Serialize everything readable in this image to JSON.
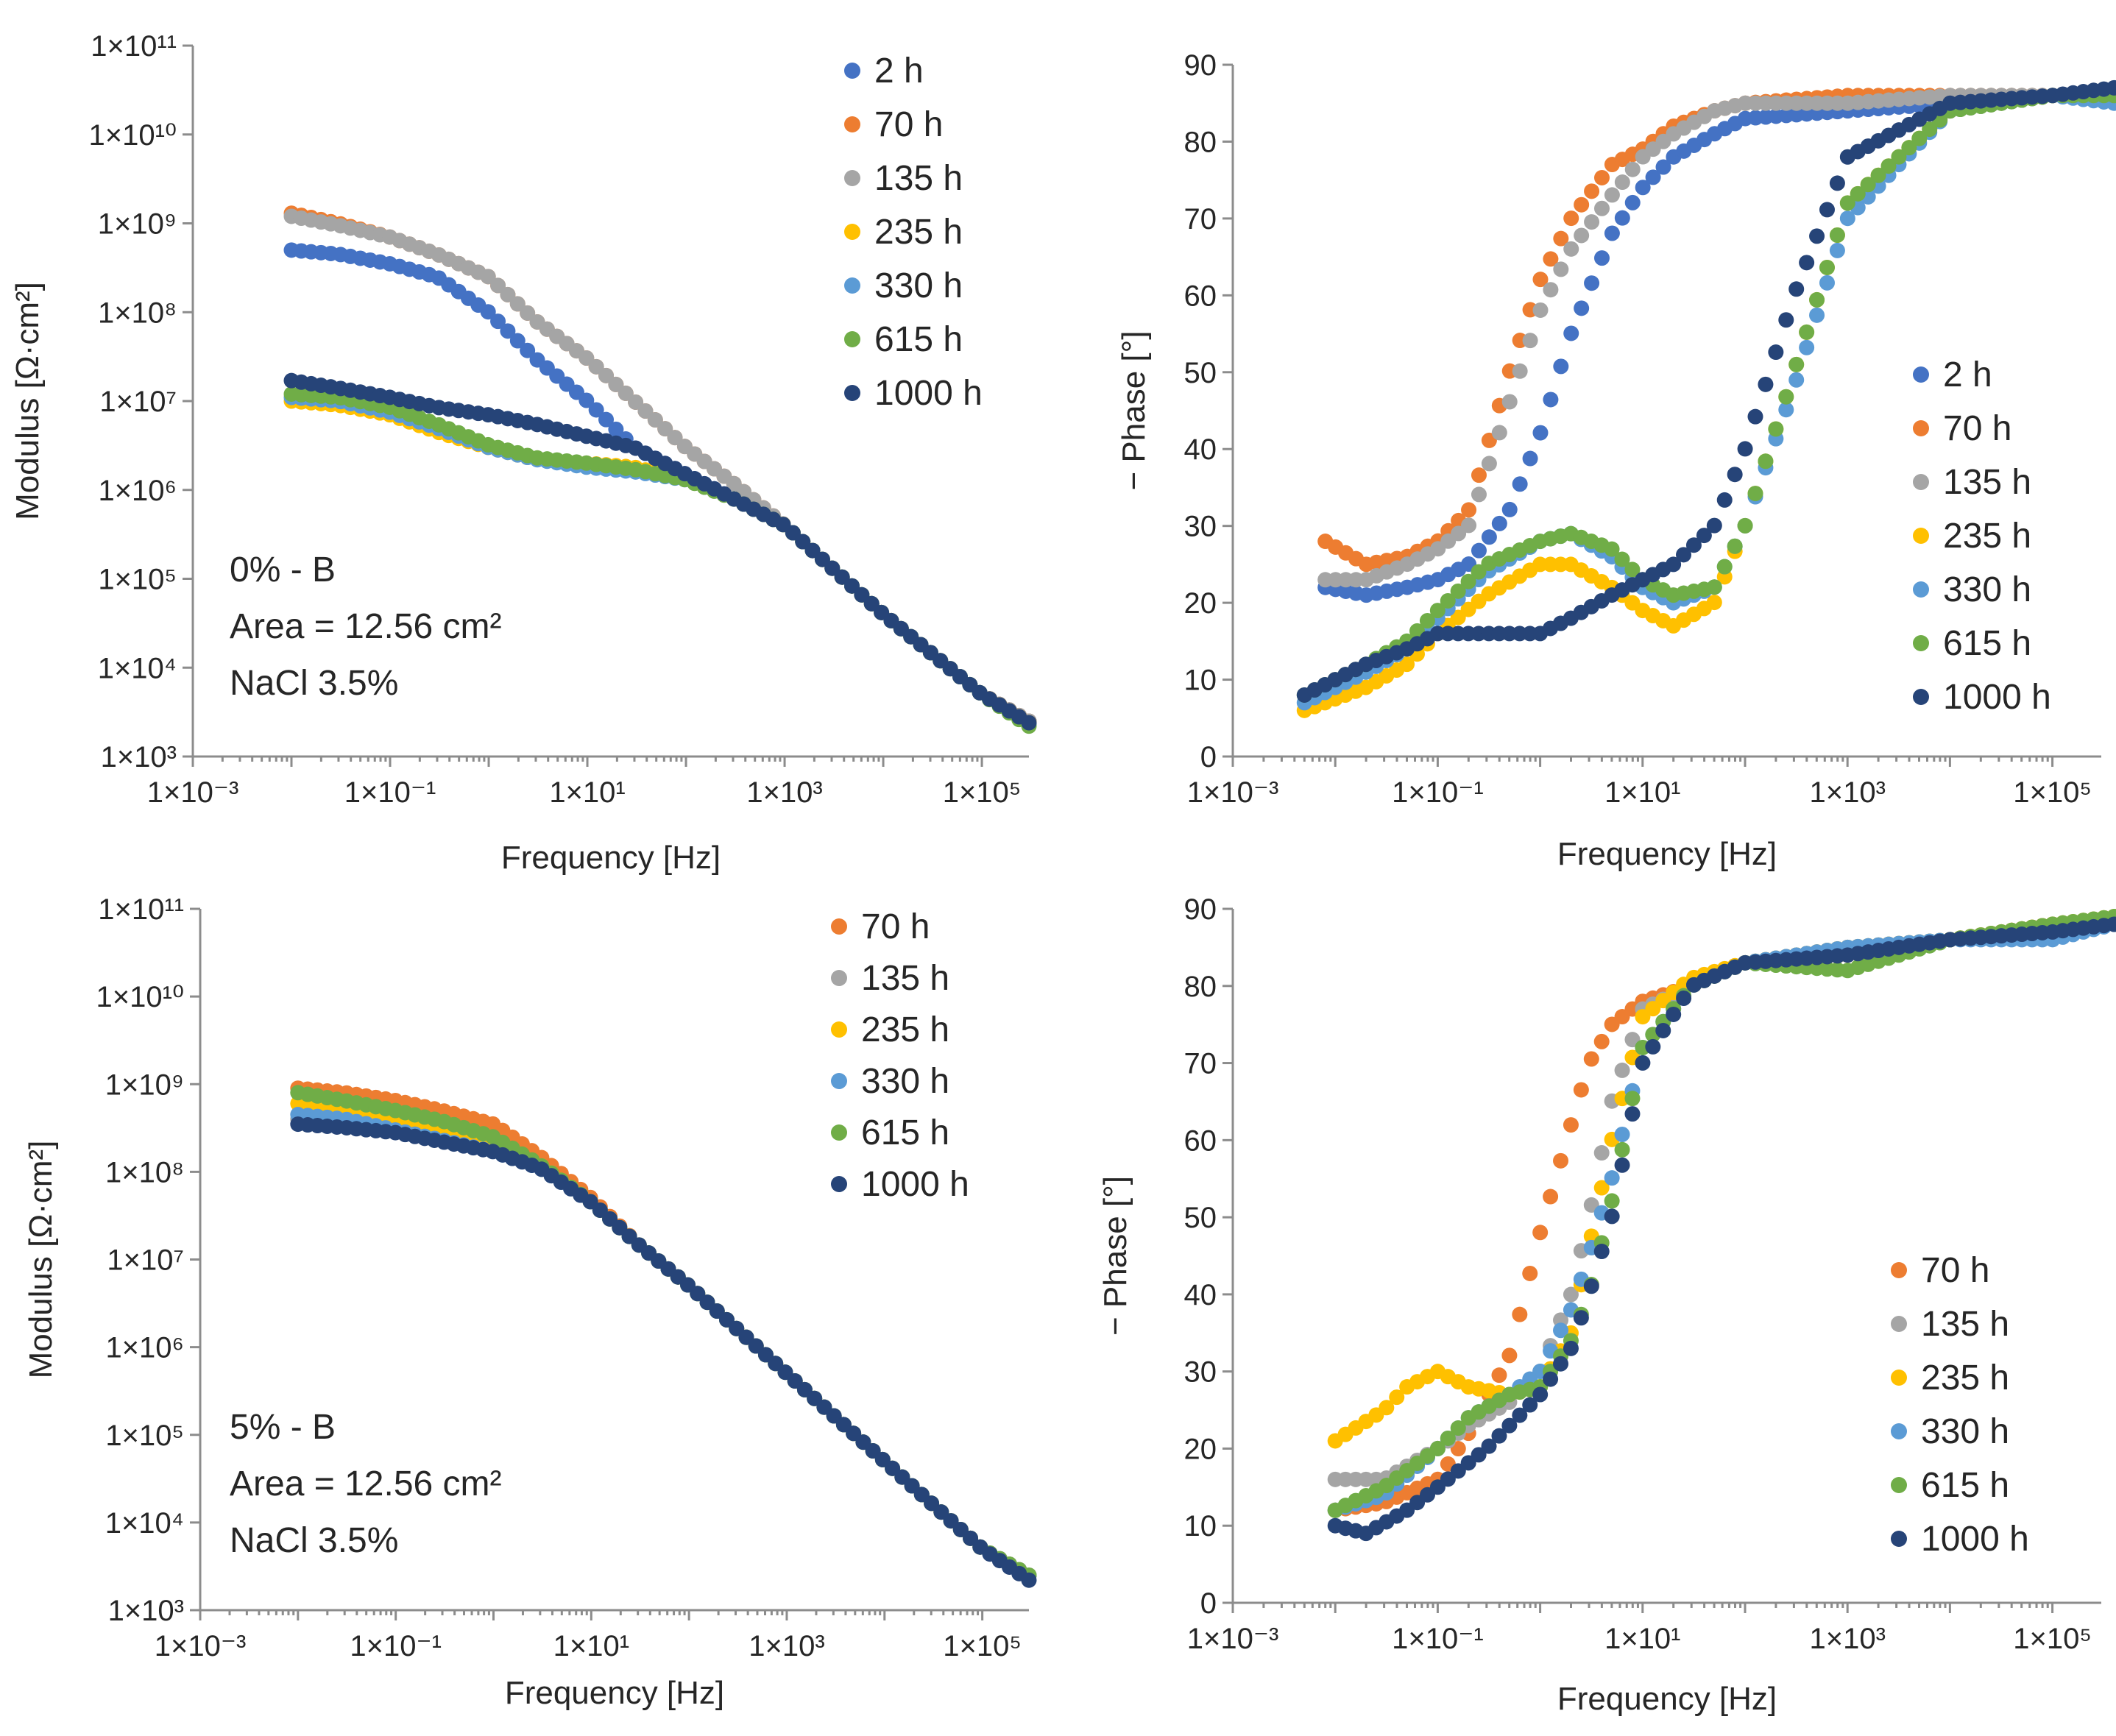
{
  "colors": {
    "2 h": "#4472c4",
    "70 h": "#ed7d31",
    "135 h": "#a5a5a5",
    "235 h": "#ffc000",
    "330 h": "#5b9bd5",
    "615 h": "#70ad47",
    "1000 h": "#264478"
  },
  "chart_data": [
    {
      "id": "modulus-0",
      "type": "scatter",
      "xscale": "log",
      "yscale": "log",
      "xlabel": "Frequency [Hz]",
      "ylabel": "Modulus [Ω·cm²]",
      "xlim": [
        0.001,
        300000
      ],
      "ylim": [
        1000,
        100000000000
      ],
      "xticks": [
        "1×10⁻³",
        "1×10⁻¹",
        "1×10¹",
        "1×10³",
        "1×10⁵"
      ],
      "yticks": [
        "1×10³",
        "1×10⁴",
        "1×10⁵",
        "1×10⁶",
        "1×10⁷",
        "1×10⁸",
        "1×10⁹",
        "1×10¹⁰",
        "1×10¹¹"
      ],
      "annotation": [
        "0% - B",
        "Area = 12.56 cm²",
        "NaCl 3.5%"
      ],
      "series": [
        {
          "name": "2 h",
          "x": [
            0.01,
            0.03,
            0.1,
            0.3,
            1,
            3,
            10,
            30,
            100,
            300,
            1000,
            10000,
            100000,
            300000
          ],
          "y": [
            500000000,
            450000000,
            350000000,
            250000000,
            100000000,
            30000000,
            10000000,
            3000000,
            1500000,
            800000,
            400000,
            40000,
            5000,
            2500
          ]
        },
        {
          "name": "70 h",
          "x": [
            0.01,
            0.03,
            0.1,
            0.3,
            1,
            3,
            10,
            30,
            100,
            300,
            1000,
            10000,
            100000,
            300000
          ],
          "y": [
            1300000000,
            1000000000,
            700000000,
            450000000,
            250000000,
            80000000,
            30000000,
            10000000,
            3000000,
            1200000,
            400000,
            40000,
            5000,
            2500
          ]
        },
        {
          "name": "135 h",
          "x": [
            0.01,
            0.03,
            0.1,
            0.3,
            1,
            3,
            10,
            30,
            100,
            300,
            1000,
            10000,
            100000,
            300000
          ],
          "y": [
            1200000000,
            950000000,
            700000000,
            450000000,
            250000000,
            80000000,
            30000000,
            10000000,
            3000000,
            1200000,
            400000,
            40000,
            5000,
            2500
          ]
        },
        {
          "name": "235 h",
          "x": [
            0.01,
            0.03,
            0.1,
            0.3,
            1,
            3,
            10,
            30,
            100,
            300,
            1000,
            10000,
            100000,
            300000
          ],
          "y": [
            10000000,
            9000000,
            7000000,
            4500000,
            3000000,
            2200000,
            2000000,
            1800000,
            1300000,
            800000,
            400000,
            40000,
            5000,
            2400
          ]
        },
        {
          "name": "330 h",
          "x": [
            0.01,
            0.03,
            0.1,
            0.3,
            1,
            3,
            10,
            30,
            100,
            300,
            1000,
            10000,
            100000,
            300000
          ],
          "y": [
            11000000,
            10000000,
            7500000,
            5000000,
            3000000,
            2200000,
            1800000,
            1600000,
            1300000,
            800000,
            400000,
            40000,
            5000,
            2300
          ]
        },
        {
          "name": "615 h",
          "x": [
            0.01,
            0.03,
            0.1,
            0.3,
            1,
            3,
            10,
            30,
            100,
            300,
            1000,
            10000,
            100000,
            300000
          ],
          "y": [
            12000000,
            11000000,
            8500000,
            5500000,
            3200000,
            2300000,
            2000000,
            1700000,
            1300000,
            800000,
            400000,
            40000,
            5000,
            2200
          ]
        },
        {
          "name": "1000 h",
          "x": [
            0.01,
            0.03,
            0.1,
            0.3,
            1,
            3,
            10,
            30,
            100,
            300,
            1000,
            10000,
            100000,
            300000
          ],
          "y": [
            17000000,
            14000000,
            11000000,
            8500000,
            7000000,
            5500000,
            4000000,
            3000000,
            1500000,
            800000,
            400000,
            40000,
            5000,
            2400
          ]
        }
      ]
    },
    {
      "id": "phase-0",
      "type": "scatter",
      "xscale": "log",
      "yscale": "linear",
      "xlabel": "Frequency [Hz]",
      "ylabel": "− Phase [°]",
      "xlim": [
        0.001,
        300000
      ],
      "ylim": [
        0,
        90
      ],
      "xticks": [
        "1×10⁻³",
        "1×10⁻¹",
        "1×10¹",
        "1×10³",
        "1×10⁵"
      ],
      "yticks": [
        "0",
        "10",
        "20",
        "30",
        "40",
        "50",
        "60",
        "70",
        "80",
        "90"
      ],
      "series": [
        {
          "name": "2 h",
          "x": [
            0.008,
            0.02,
            0.05,
            0.1,
            0.2,
            0.5,
            1,
            2,
            5,
            10,
            20,
            50,
            100,
            1000,
            10000,
            100000,
            400000
          ],
          "y": [
            22,
            21,
            22,
            23,
            25,
            32,
            42,
            55,
            68,
            74,
            78,
            81,
            83,
            84,
            85,
            86,
            86
          ]
        },
        {
          "name": "70 h",
          "x": [
            0.008,
            0.02,
            0.05,
            0.1,
            0.2,
            0.5,
            1,
            2,
            5,
            10,
            20,
            50,
            100,
            1000,
            10000,
            100000,
            400000
          ],
          "y": [
            28,
            25,
            26,
            28,
            32,
            50,
            62,
            70,
            77,
            79,
            82,
            84,
            85,
            86,
            86,
            86,
            86
          ]
        },
        {
          "name": "135 h",
          "x": [
            0.008,
            0.02,
            0.05,
            0.1,
            0.2,
            0.5,
            1,
            2,
            5,
            10,
            20,
            50,
            100,
            1000,
            10000,
            100000,
            400000
          ],
          "y": [
            23,
            23,
            25,
            27,
            30,
            46,
            58,
            66,
            73,
            78,
            81,
            84,
            85,
            85,
            86,
            86,
            86
          ]
        },
        {
          "name": "235 h",
          "x": [
            0.005,
            0.02,
            0.05,
            0.1,
            0.3,
            1,
            2,
            5,
            10,
            20,
            50,
            100,
            300,
            1000,
            10000,
            100000,
            400000
          ],
          "y": [
            6,
            9,
            12,
            16,
            21,
            25,
            25,
            22,
            19,
            17,
            20,
            30,
            50,
            72,
            84,
            86,
            86
          ]
        },
        {
          "name": "330 h",
          "x": [
            0.005,
            0.02,
            0.05,
            0.1,
            0.3,
            1,
            2,
            5,
            10,
            20,
            50,
            100,
            300,
            1000,
            10000,
            100000,
            400000
          ],
          "y": [
            7,
            11,
            14,
            18,
            24,
            28,
            29,
            26,
            22,
            20,
            22,
            30,
            48,
            70,
            84,
            86,
            85
          ]
        },
        {
          "name": "615 h",
          "x": [
            0.005,
            0.02,
            0.05,
            0.1,
            0.3,
            1,
            2,
            5,
            10,
            20,
            50,
            100,
            300,
            1000,
            10000,
            100000,
            400000
          ],
          "y": [
            8,
            12,
            15,
            19,
            25,
            28,
            29,
            27,
            23,
            21,
            22,
            30,
            50,
            72,
            84,
            86,
            86
          ]
        },
        {
          "name": "1000 h",
          "x": [
            0.005,
            0.02,
            0.05,
            0.1,
            0.3,
            1,
            2,
            5,
            10,
            20,
            50,
            100,
            300,
            1000,
            10000,
            100000,
            400000
          ],
          "y": [
            8,
            12,
            14,
            16,
            16,
            16,
            18,
            21,
            23,
            25,
            30,
            40,
            60,
            78,
            85,
            86,
            87
          ]
        }
      ]
    },
    {
      "id": "modulus-5",
      "type": "scatter",
      "xscale": "log",
      "yscale": "log",
      "xlabel": "Frequency [Hz]",
      "ylabel": "Modulus [Ω·cm²]",
      "xlim": [
        0.001,
        300000
      ],
      "ylim": [
        1000,
        100000000000
      ],
      "xticks": [
        "1×10⁻³",
        "1×10⁻¹",
        "1×10¹",
        "1×10³",
        "1×10⁵"
      ],
      "yticks": [
        "1×10³",
        "1×10⁴",
        "1×10⁵",
        "1×10⁶",
        "1×10⁷",
        "1×10⁸",
        "1×10⁹",
        "1×10¹⁰",
        "1×10¹¹"
      ],
      "annotation": [
        "5% - B",
        "Area = 12.56 cm²",
        "NaCl 3.5%"
      ],
      "series": [
        {
          "name": "70 h",
          "x": [
            0.01,
            0.03,
            0.1,
            0.3,
            1,
            3,
            10,
            30,
            100,
            1000,
            10000,
            100000,
            300000
          ],
          "y": [
            900000000,
            800000000,
            650000000,
            500000000,
            350000000,
            150000000,
            50000000,
            15000000,
            5000000,
            500000,
            50000,
            5000,
            2500
          ]
        },
        {
          "name": "135 h",
          "x": [
            0.01,
            0.03,
            0.1,
            0.3,
            1,
            3,
            10,
            30,
            100,
            1000,
            10000,
            100000,
            300000
          ],
          "y": [
            400000000,
            350000000,
            300000000,
            250000000,
            180000000,
            110000000,
            45000000,
            15000000,
            5000000,
            500000,
            50000,
            5000,
            2500
          ]
        },
        {
          "name": "235 h",
          "x": [
            0.01,
            0.03,
            0.1,
            0.3,
            1,
            3,
            10,
            30,
            100,
            1000,
            10000,
            100000,
            300000
          ],
          "y": [
            600000000,
            500000000,
            400000000,
            300000000,
            200000000,
            120000000,
            45000000,
            15000000,
            5000000,
            500000,
            50000,
            5000,
            2500
          ]
        },
        {
          "name": "330 h",
          "x": [
            0.01,
            0.03,
            0.1,
            0.3,
            1,
            3,
            10,
            30,
            100,
            1000,
            10000,
            100000,
            300000
          ],
          "y": [
            450000000,
            400000000,
            300000000,
            230000000,
            170000000,
            110000000,
            45000000,
            15000000,
            5000000,
            500000,
            50000,
            5000,
            2500
          ]
        },
        {
          "name": "615 h",
          "x": [
            0.01,
            0.03,
            0.1,
            0.3,
            1,
            3,
            10,
            30,
            100,
            1000,
            10000,
            100000,
            300000
          ],
          "y": [
            800000000,
            650000000,
            500000000,
            380000000,
            250000000,
            120000000,
            45000000,
            15000000,
            5000000,
            500000,
            50000,
            5000,
            2500
          ]
        },
        {
          "name": "1000 h",
          "x": [
            0.01,
            0.03,
            0.1,
            0.3,
            1,
            3,
            10,
            30,
            100,
            1000,
            10000,
            100000,
            300000
          ],
          "y": [
            350000000,
            320000000,
            280000000,
            220000000,
            170000000,
            110000000,
            45000000,
            15000000,
            5000000,
            500000,
            50000,
            5000,
            2200
          ]
        }
      ]
    },
    {
      "id": "phase-5",
      "type": "scatter",
      "xscale": "log",
      "yscale": "linear",
      "xlabel": "Frequency [Hz]",
      "ylabel": "− Phase [°]",
      "xlim": [
        0.001,
        300000
      ],
      "ylim": [
        0,
        90
      ],
      "xticks": [
        "1×10⁻³",
        "1×10⁻¹",
        "1×10¹",
        "1×10³",
        "1×10⁵"
      ],
      "yticks": [
        "0",
        "10",
        "20",
        "30",
        "40",
        "50",
        "60",
        "70",
        "80",
        "90"
      ],
      "series": [
        {
          "name": "70 h",
          "x": [
            0.01,
            0.03,
            0.1,
            0.2,
            0.5,
            1,
            2,
            3,
            5,
            10,
            30,
            100,
            1000,
            10000,
            100000,
            400000
          ],
          "y": [
            12,
            13,
            16,
            22,
            32,
            48,
            62,
            70,
            75,
            78,
            80,
            83,
            84,
            86,
            88,
            88
          ]
        },
        {
          "name": "135 h",
          "x": [
            0.01,
            0.03,
            0.1,
            0.2,
            0.5,
            1,
            2,
            3,
            5,
            10,
            30,
            100,
            1000,
            10000,
            100000,
            400000
          ],
          "y": [
            16,
            16,
            20,
            23,
            26,
            30,
            40,
            50,
            65,
            77,
            80,
            83,
            85,
            86,
            88,
            88
          ]
        },
        {
          "name": "235 h",
          "x": [
            0.01,
            0.03,
            0.05,
            0.1,
            0.2,
            0.5,
            1,
            2,
            5,
            10,
            30,
            100,
            1000,
            10000,
            100000,
            400000
          ],
          "y": [
            21,
            25,
            28,
            30,
            28,
            27,
            28,
            35,
            60,
            76,
            81,
            83,
            85,
            86,
            88,
            89
          ]
        },
        {
          "name": "330 h",
          "x": [
            0.01,
            0.03,
            0.1,
            0.2,
            0.5,
            1,
            2,
            3,
            5,
            10,
            30,
            100,
            1000,
            10000,
            100000,
            400000
          ],
          "y": [
            12,
            14,
            20,
            24,
            27,
            30,
            38,
            45,
            55,
            72,
            80,
            83,
            85,
            86,
            86,
            88
          ]
        },
        {
          "name": "615 h",
          "x": [
            0.01,
            0.03,
            0.1,
            0.2,
            0.5,
            1,
            2,
            3,
            5,
            10,
            30,
            100,
            1000,
            10000,
            100000,
            400000
          ],
          "y": [
            12,
            15,
            20,
            24,
            27,
            28,
            34,
            40,
            52,
            72,
            80,
            83,
            82,
            86,
            88,
            89
          ]
        },
        {
          "name": "1000 h",
          "x": [
            0.01,
            0.02,
            0.05,
            0.1,
            0.3,
            1,
            2,
            3,
            5,
            10,
            30,
            100,
            1000,
            10000,
            100000,
            400000
          ],
          "y": [
            10,
            9,
            12,
            15,
            20,
            27,
            33,
            40,
            50,
            70,
            80,
            83,
            84,
            86,
            87,
            88
          ]
        }
      ]
    }
  ]
}
